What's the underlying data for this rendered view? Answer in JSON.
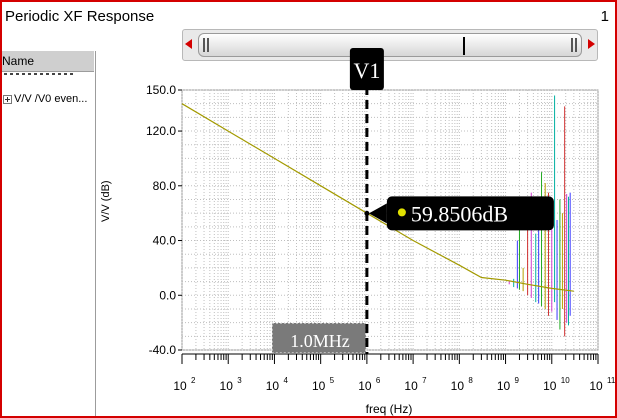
{
  "window": {
    "title": "Periodic XF Response",
    "number": "1"
  },
  "sidebar": {
    "header": "Name",
    "items": [
      {
        "label": "V/V /V0 even..."
      }
    ]
  },
  "colors": {
    "frame": "#d40000",
    "curve": "#a39a00",
    "grid": "#bfbfbf",
    "marker_dot": "#e0e000",
    "label_bg": "#000000",
    "label_text": "#ffffff",
    "spikes": [
      "#d23ccf",
      "#00b0a0",
      "#3a3aff",
      "#22aa22",
      "#b8a000",
      "#d03030"
    ]
  },
  "icons": {
    "expander": "plus-box-icon",
    "scroll_left": "arrow-left-icon",
    "scroll_right": "arrow-right-icon"
  },
  "chart_data": {
    "type": "line",
    "title": "",
    "xlabel": "freq (Hz)",
    "ylabel": "V/V (dB)",
    "xscale": "log",
    "xlim": [
      100,
      100000000000
    ],
    "ylim": [
      -40,
      150
    ],
    "grid": true,
    "x_ticks": [
      "10",
      "10",
      "10",
      "10",
      "10",
      "10",
      "10",
      "10",
      "10",
      "10"
    ],
    "x_tick_exponents": [
      "2",
      "3",
      "4",
      "5",
      "6",
      "7",
      "8",
      "9",
      "10",
      "11"
    ],
    "y_ticks": [
      "150.0",
      "120.0",
      "80.0",
      "40.0",
      "0.0",
      "-40.0"
    ],
    "y_tick_values": [
      150,
      120,
      80,
      40,
      0,
      -40
    ],
    "series": [
      {
        "x": [
          100,
          1000,
          10000,
          100000,
          1000000,
          10000000,
          100000000,
          300000000,
          1000000000,
          3000000000,
          10000000000,
          30000000000
        ],
        "y": [
          140,
          120,
          100,
          80,
          60,
          40,
          22,
          13,
          11,
          8,
          5,
          3
        ]
      }
    ],
    "spike_x": [
      1200000000,
      1500000000,
      1800000000,
      2000000000,
      2400000000,
      3000000000,
      3600000000,
      4500000000,
      5200000000,
      6000000000,
      7200000000,
      8500000000,
      10000000000,
      11500000000,
      13000000000,
      15000000000,
      17000000000,
      19000000000,
      21000000000,
      23000000000,
      25000000000
    ],
    "spike_hi": [
      10,
      12,
      40,
      55,
      20,
      70,
      75,
      45,
      55,
      90,
      82,
      75,
      62,
      146,
      55,
      70,
      60,
      138,
      74,
      72,
      75
    ],
    "spike_lo": [
      8,
      6,
      5,
      4,
      3,
      0,
      -2,
      -5,
      -6,
      -8,
      -10,
      -15,
      -12,
      -5,
      -18,
      -25,
      -10,
      -30,
      -20,
      -22,
      -15
    ],
    "cursor": {
      "name": "V1",
      "x": 1000000,
      "y": 59.8506,
      "value_label": "59.8506dB",
      "x_label": "1.0MHz"
    }
  }
}
